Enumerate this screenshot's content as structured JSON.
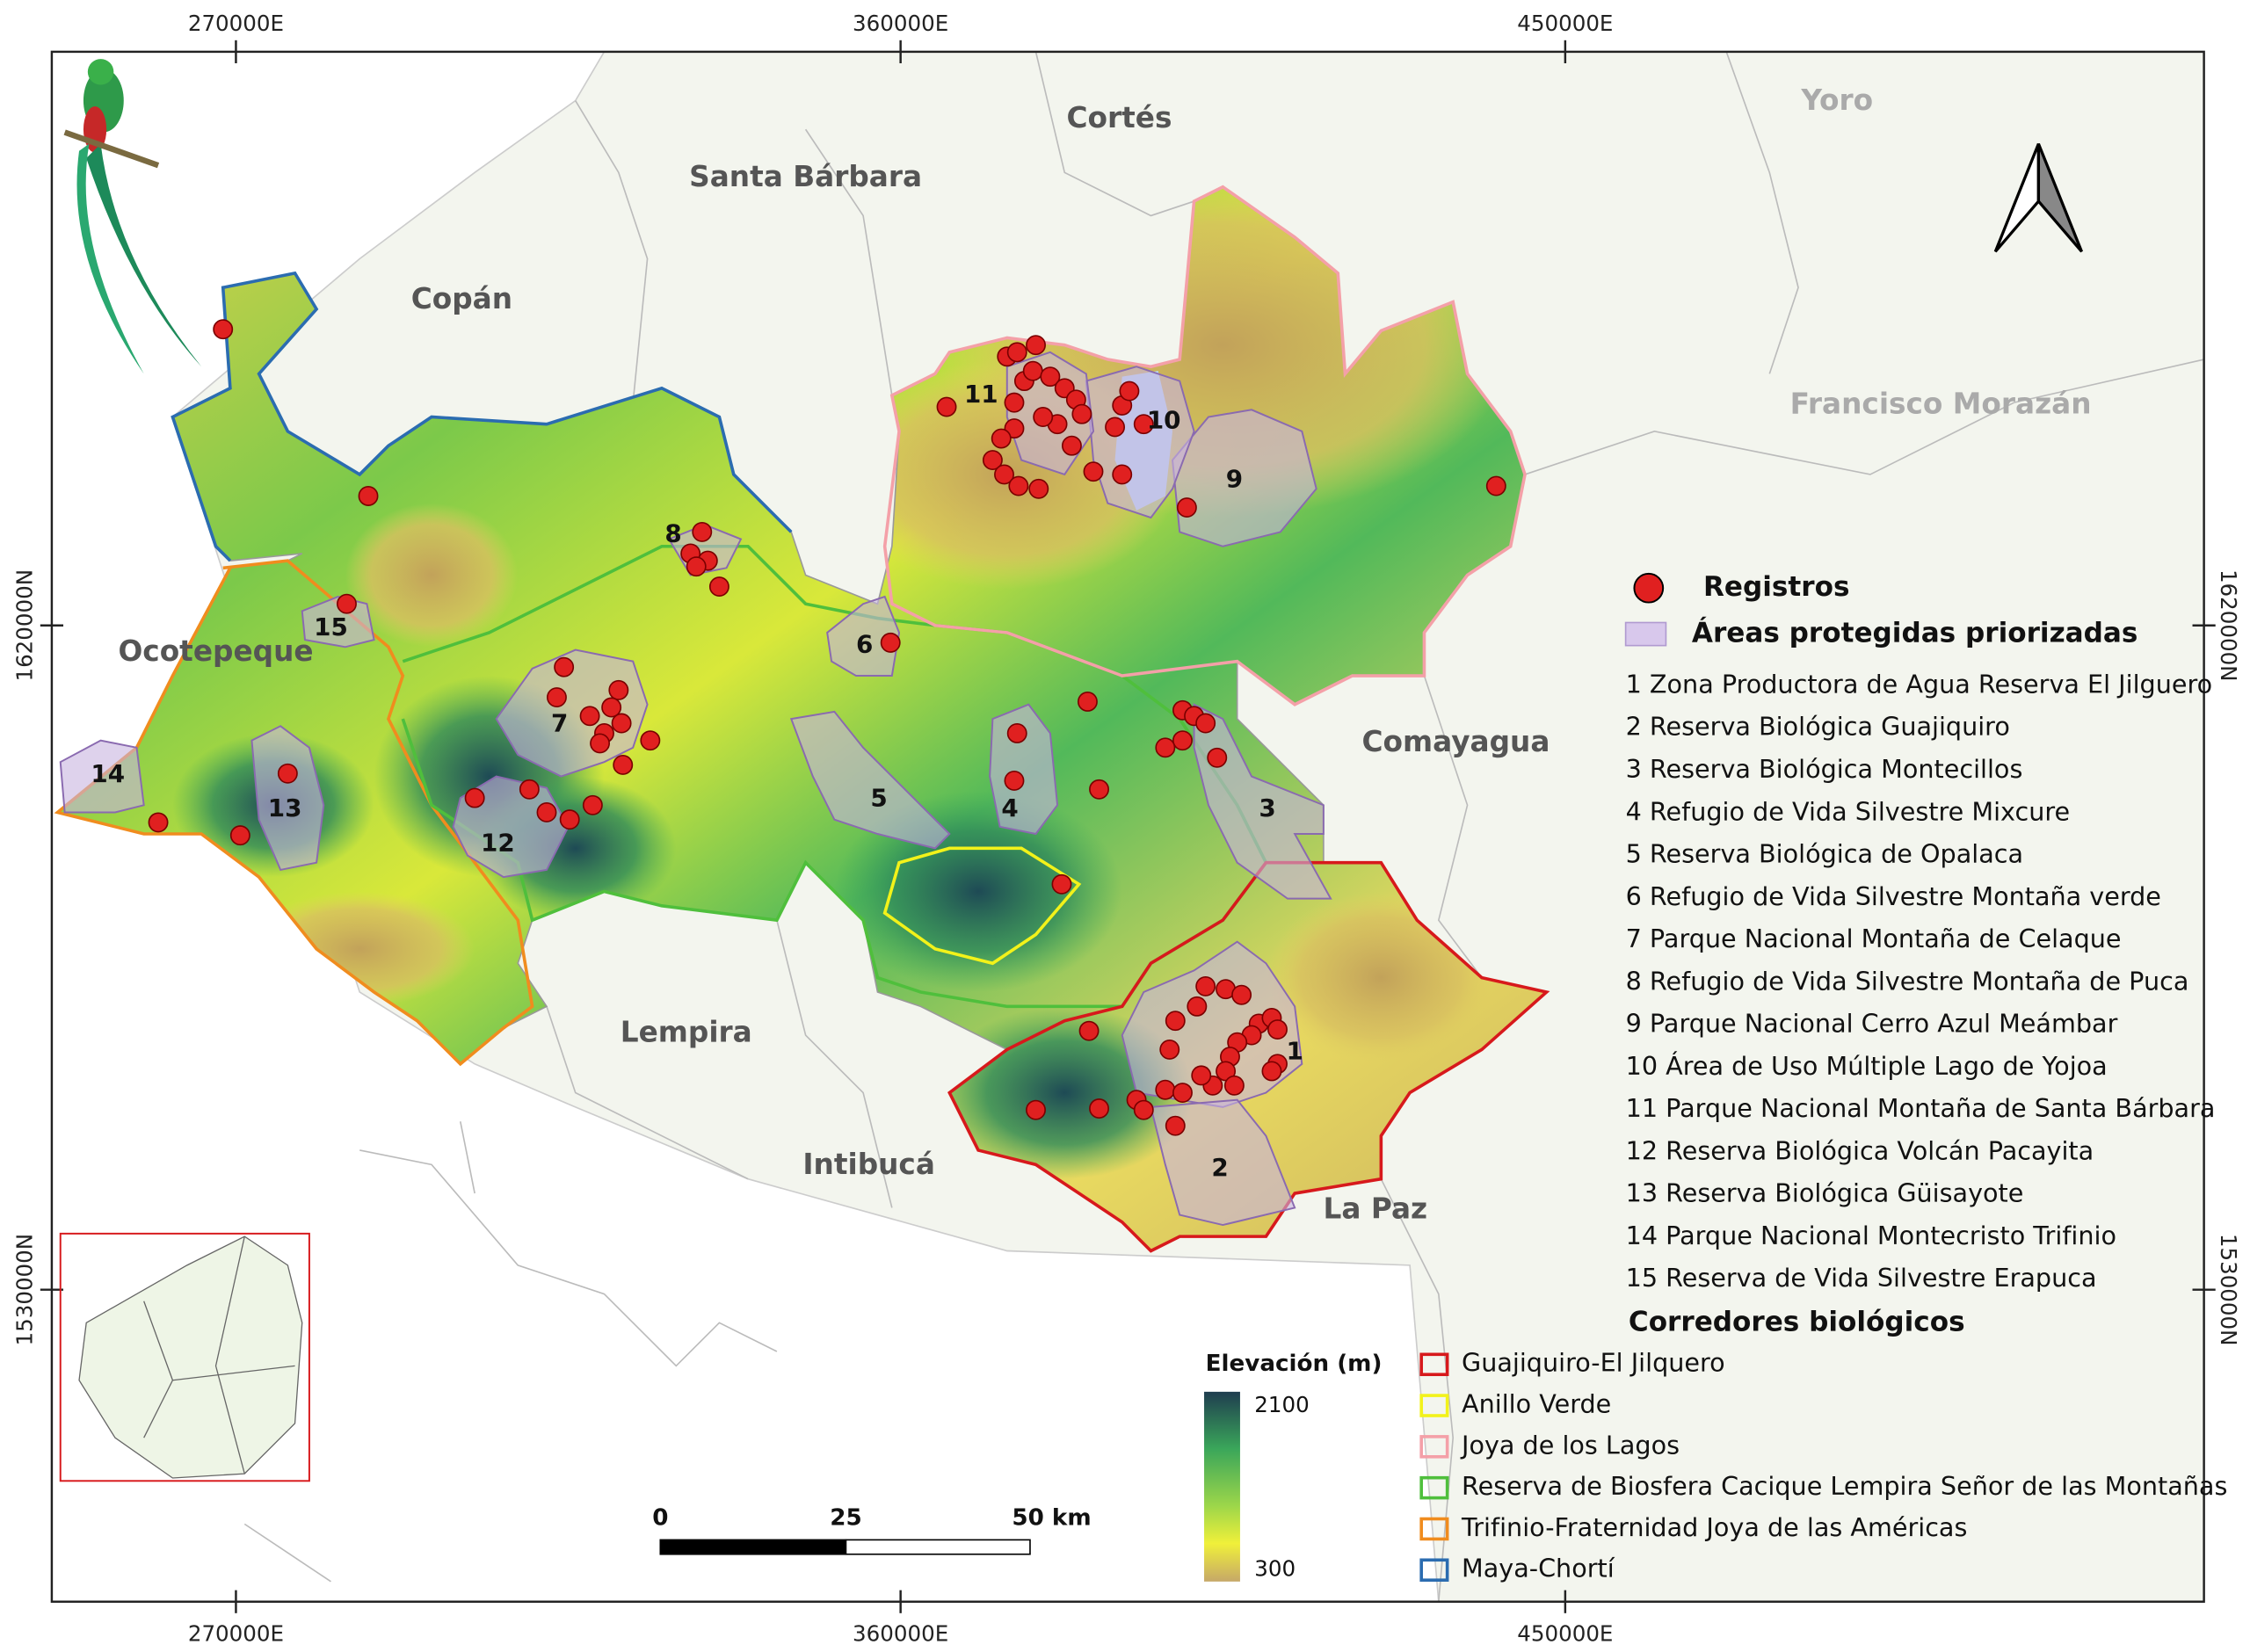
{
  "map": {
    "grid_labels": {
      "easting": [
        "270000E",
        "360000E",
        "450000E"
      ],
      "northing": [
        "1620000N",
        "1530000N"
      ]
    },
    "departments": [
      "Santa Bárbara",
      "Cortés",
      "Yoro",
      "Copán",
      "Francisco Morazán",
      "Ocotepeque",
      "Comayagua",
      "Lempira",
      "Intibucá",
      "La Paz"
    ],
    "protected_area_labels": [
      "1",
      "2",
      "3",
      "4",
      "5",
      "6",
      "7",
      "8",
      "9",
      "10",
      "11",
      "12",
      "13",
      "14",
      "15"
    ],
    "legend": {
      "records": "Registros",
      "protected_areas": "Áreas protegidas priorizadas",
      "protected_area_list": [
        "1 Zona Productora de Agua Reserva El Jilguero",
        "2 Reserva Biológica Guajiquiro",
        "3 Reserva Biológica Montecillos",
        "4 Refugio de Vida Silvestre Mixcure",
        "5 Reserva Biológica de Opalaca",
        "6 Refugio de Vida Silvestre Montaña verde",
        "7 Parque Nacional Montaña de Celaque",
        "8 Refugio de Vida Silvestre Montaña de Puca",
        "9 Parque Nacional Cerro Azul Meámbar",
        "10 Área de Uso Múltiple Lago de Yojoa",
        "11 Parque Nacional Montaña de Santa Bárbara",
        "12 Reserva Biológica Volcán Pacayita",
        "13 Reserva Biológica Güisayote",
        "14 Parque Nacional Montecristo Trifinio",
        "15 Reserva de Vida Silvestre Erapuca"
      ],
      "corridors_title": "Corredores biológicos",
      "corridors": [
        {
          "name": "Guajiquiro-El Jilquero",
          "color": "#d7191c"
        },
        {
          "name": "Anillo Verde",
          "color": "#f2f21a"
        },
        {
          "name": "Joya de los Lagos",
          "color": "#f4a0a8"
        },
        {
          "name": "Reserva de Biosfera Cacique Lempira Señor de las Montañas",
          "color": "#4fbf3c"
        },
        {
          "name": "Trifinio-Fraternidad Joya de las Américas",
          "color": "#f08c1e"
        },
        {
          "name": "Maya-Chortí",
          "color": "#2b6cb0"
        }
      ],
      "elevation": {
        "title": "Elevación (m)",
        "max": 2100,
        "min": 300
      }
    },
    "scale_bar": {
      "labels": [
        "0",
        "25",
        "50 km"
      ]
    }
  }
}
